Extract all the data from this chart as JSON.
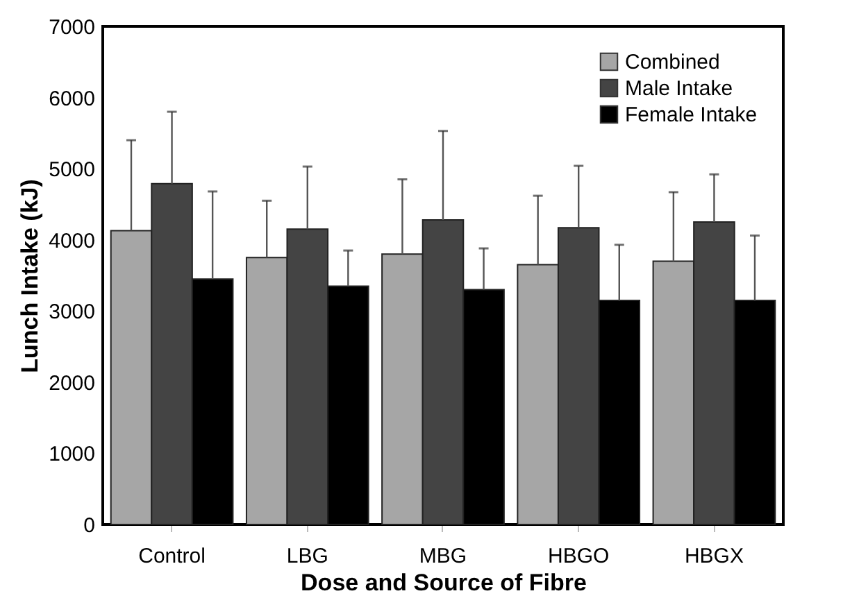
{
  "chart_data": {
    "type": "bar",
    "xlabel": "Dose and Source of Fibre",
    "ylabel": "Lunch Intake (kJ)",
    "categories": [
      "Control",
      "LBG",
      "MBG",
      "HBGO",
      "HBGX"
    ],
    "series": [
      {
        "name": "Combined",
        "color": "#a6a6a6",
        "values": [
          4130,
          3750,
          3800,
          3650,
          3700
        ],
        "errors": [
          [
            4130,
            5400
          ],
          [
            3750,
            4550
          ],
          [
            3800,
            4850
          ],
          [
            3650,
            4620
          ],
          [
            3700,
            4670
          ]
        ]
      },
      {
        "name": "Male Intake",
        "color": "#444444",
        "values": [
          4790,
          4150,
          4280,
          4170,
          4250
        ],
        "errors": [
          [
            4790,
            5800
          ],
          [
            4150,
            5030
          ],
          [
            4280,
            5530
          ],
          [
            4170,
            5040
          ],
          [
            4250,
            4920
          ]
        ]
      },
      {
        "name": "Female Intake",
        "color": "#000000",
        "values": [
          3450,
          3350,
          3300,
          3150,
          3150
        ],
        "errors": [
          [
            3450,
            4680
          ],
          [
            3350,
            3850
          ],
          [
            3300,
            3880
          ],
          [
            3150,
            3930
          ],
          [
            3150,
            4060
          ]
        ]
      }
    ],
    "ylim": [
      0,
      7000
    ],
    "yticks": [
      0,
      1000,
      2000,
      3000,
      4000,
      5000,
      6000,
      7000
    ],
    "grid": false,
    "legend": "top right"
  }
}
